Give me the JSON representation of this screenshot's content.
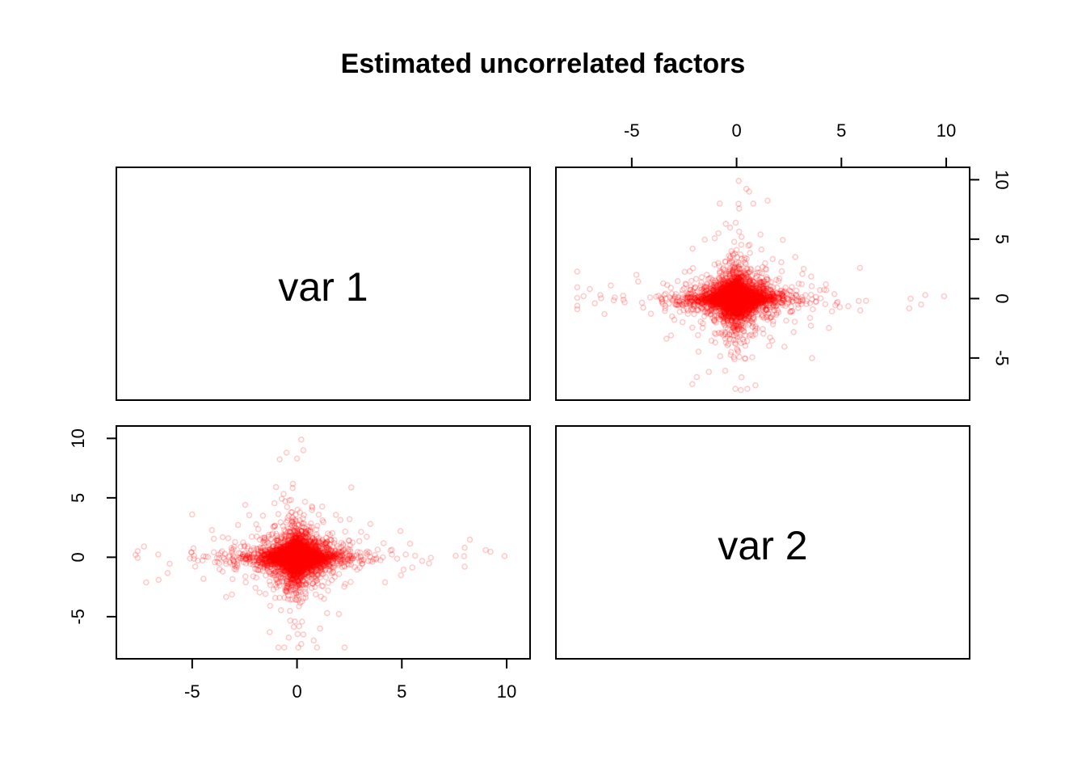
{
  "chart_data": {
    "type": "scatter",
    "title": "Estimated uncorrelated factors",
    "layout": "pairs",
    "variables": [
      "var 1",
      "var 2"
    ],
    "axis": {
      "range": [
        -8,
        10.5
      ],
      "ticks": [
        -5,
        0,
        5,
        10
      ],
      "tick_labels": [
        "-5",
        "0",
        "5",
        "10"
      ]
    },
    "point_style": {
      "color": "#ff0000",
      "alpha": 0.2,
      "marker": "open-circle"
    },
    "n_points_approx": 5000,
    "distribution": {
      "shape": "heavy-tailed symmetric, centered at origin, uncorrelated",
      "center": [
        0,
        0
      ],
      "var1_range": [
        -7.7,
        9.9
      ],
      "var2_range": [
        -7.6,
        9.9
      ]
    },
    "outliers": [
      {
        "x": 9.9,
        "y": 0.1
      },
      {
        "x": 9.0,
        "y": 0.6
      },
      {
        "x": 8.0,
        "y": 0.8
      },
      {
        "x": 8.0,
        "y": -0.8
      },
      {
        "x": -7.7,
        "y": 0.2
      },
      {
        "x": -7.3,
        "y": 0.9
      },
      {
        "x": -6.6,
        "y": -1.9
      },
      {
        "x": -5.0,
        "y": 3.6
      },
      {
        "x": 0.2,
        "y": 9.9
      },
      {
        "x": -0.5,
        "y": 8.8
      },
      {
        "x": 0.0,
        "y": 8.3
      },
      {
        "x": 0.3,
        "y": 9.0
      },
      {
        "x": -1.0,
        "y": 5.9
      },
      {
        "x": 0.2,
        "y": -7.3
      },
      {
        "x": 0.8,
        "y": -7.0
      },
      {
        "x": -1.3,
        "y": -6.3
      },
      {
        "x": 0.3,
        "y": -6.5
      },
      {
        "x": 1.1,
        "y": -6.0
      },
      {
        "x": 3.5,
        "y": 2.8
      },
      {
        "x": 4.2,
        "y": -2.1
      }
    ]
  }
}
